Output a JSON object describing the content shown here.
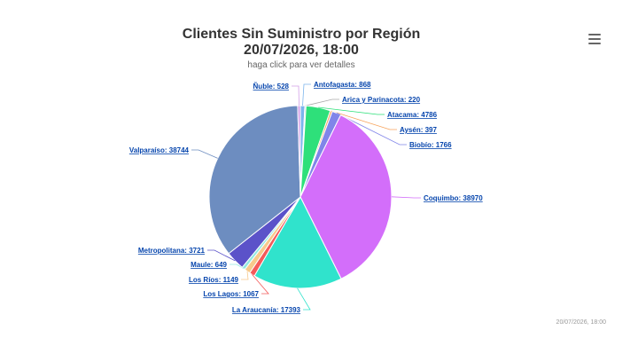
{
  "header": {
    "title_line1": "Clientes Sin Suministro por Región",
    "title_line2": "20/07/2026, 18:00",
    "subtitle": "haga click para ver detalles"
  },
  "menu_icon": "hamburger-menu-icon",
  "footer": {
    "timestamp": "20/07/2026, 18:00"
  },
  "chart_data": {
    "type": "pie",
    "title": "Clientes Sin Suministro por Región 20/07/2026, 18:00",
    "subtitle": "haga click para ver detalles",
    "slices": [
      {
        "name": "Antofagasta",
        "value": 868,
        "color": "#7cb5ec"
      },
      {
        "name": "Arica y Parinacota",
        "value": 220,
        "color": "#aaaaaa"
      },
      {
        "name": "Atacama",
        "value": 4786,
        "color": "#2ee07a"
      },
      {
        "name": "Aysén",
        "value": 397,
        "color": "#f7a35c"
      },
      {
        "name": "Biobío",
        "value": 1766,
        "color": "#8085e9"
      },
      {
        "name": "Coquimbo",
        "value": 38970,
        "color": "#d36efa"
      },
      {
        "name": "La Araucanía",
        "value": 17393,
        "color": "#30e3cc"
      },
      {
        "name": "Los Lagos",
        "value": 1067,
        "color": "#f45b5b"
      },
      {
        "name": "Los Ríos",
        "value": 1149,
        "color": "#f7c98c"
      },
      {
        "name": "Maule",
        "value": 649,
        "color": "#91e8e1"
      },
      {
        "name": "Metropolitana",
        "value": 3721,
        "color": "#5b52c9"
      },
      {
        "name": "Valparaíso",
        "value": 38744,
        "color": "#6d8dc0"
      },
      {
        "name": "Ñuble",
        "value": 528,
        "color": "#d3a0e8"
      }
    ],
    "label_text": [
      "Antofagasta: 868",
      "Arica y Parinacota: 220",
      "Atacama: 4786",
      "Aysén: 397",
      "Biobío: 1766",
      "Coquimbo: 38970",
      "La Araucanía: 17393",
      "Los Lagos: 1067",
      "Los Ríos: 1149",
      "Maule: 649",
      "Metropolitana: 3721",
      "Valparaíso: 38744",
      "Ñuble: 528"
    ]
  }
}
